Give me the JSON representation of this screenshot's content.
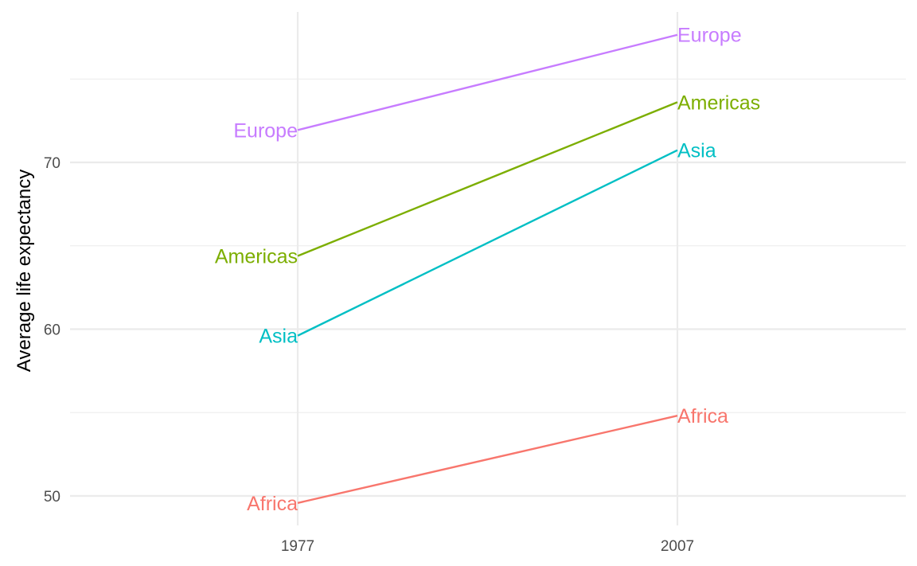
{
  "chart_data": {
    "type": "line",
    "title": "",
    "xlabel": "",
    "ylabel": "Average life expectancy",
    "x": [
      "1977",
      "2007"
    ],
    "ylim": [
      48.2,
      79.0
    ],
    "y_ticks": [
      50,
      60,
      70
    ],
    "y_minor_ticks": [
      55,
      65,
      75
    ],
    "grid": true,
    "legend": "none (direct labels)",
    "series": [
      {
        "name": "Europe",
        "values": [
          71.94,
          77.65
        ],
        "color": "#C77CFF"
      },
      {
        "name": "Americas",
        "values": [
          64.39,
          73.61
        ],
        "color": "#7CAE00"
      },
      {
        "name": "Asia",
        "values": [
          59.61,
          70.73
        ],
        "color": "#00BFC4"
      },
      {
        "name": "Africa",
        "values": [
          49.58,
          54.81
        ],
        "color": "#F8766D"
      }
    ]
  }
}
